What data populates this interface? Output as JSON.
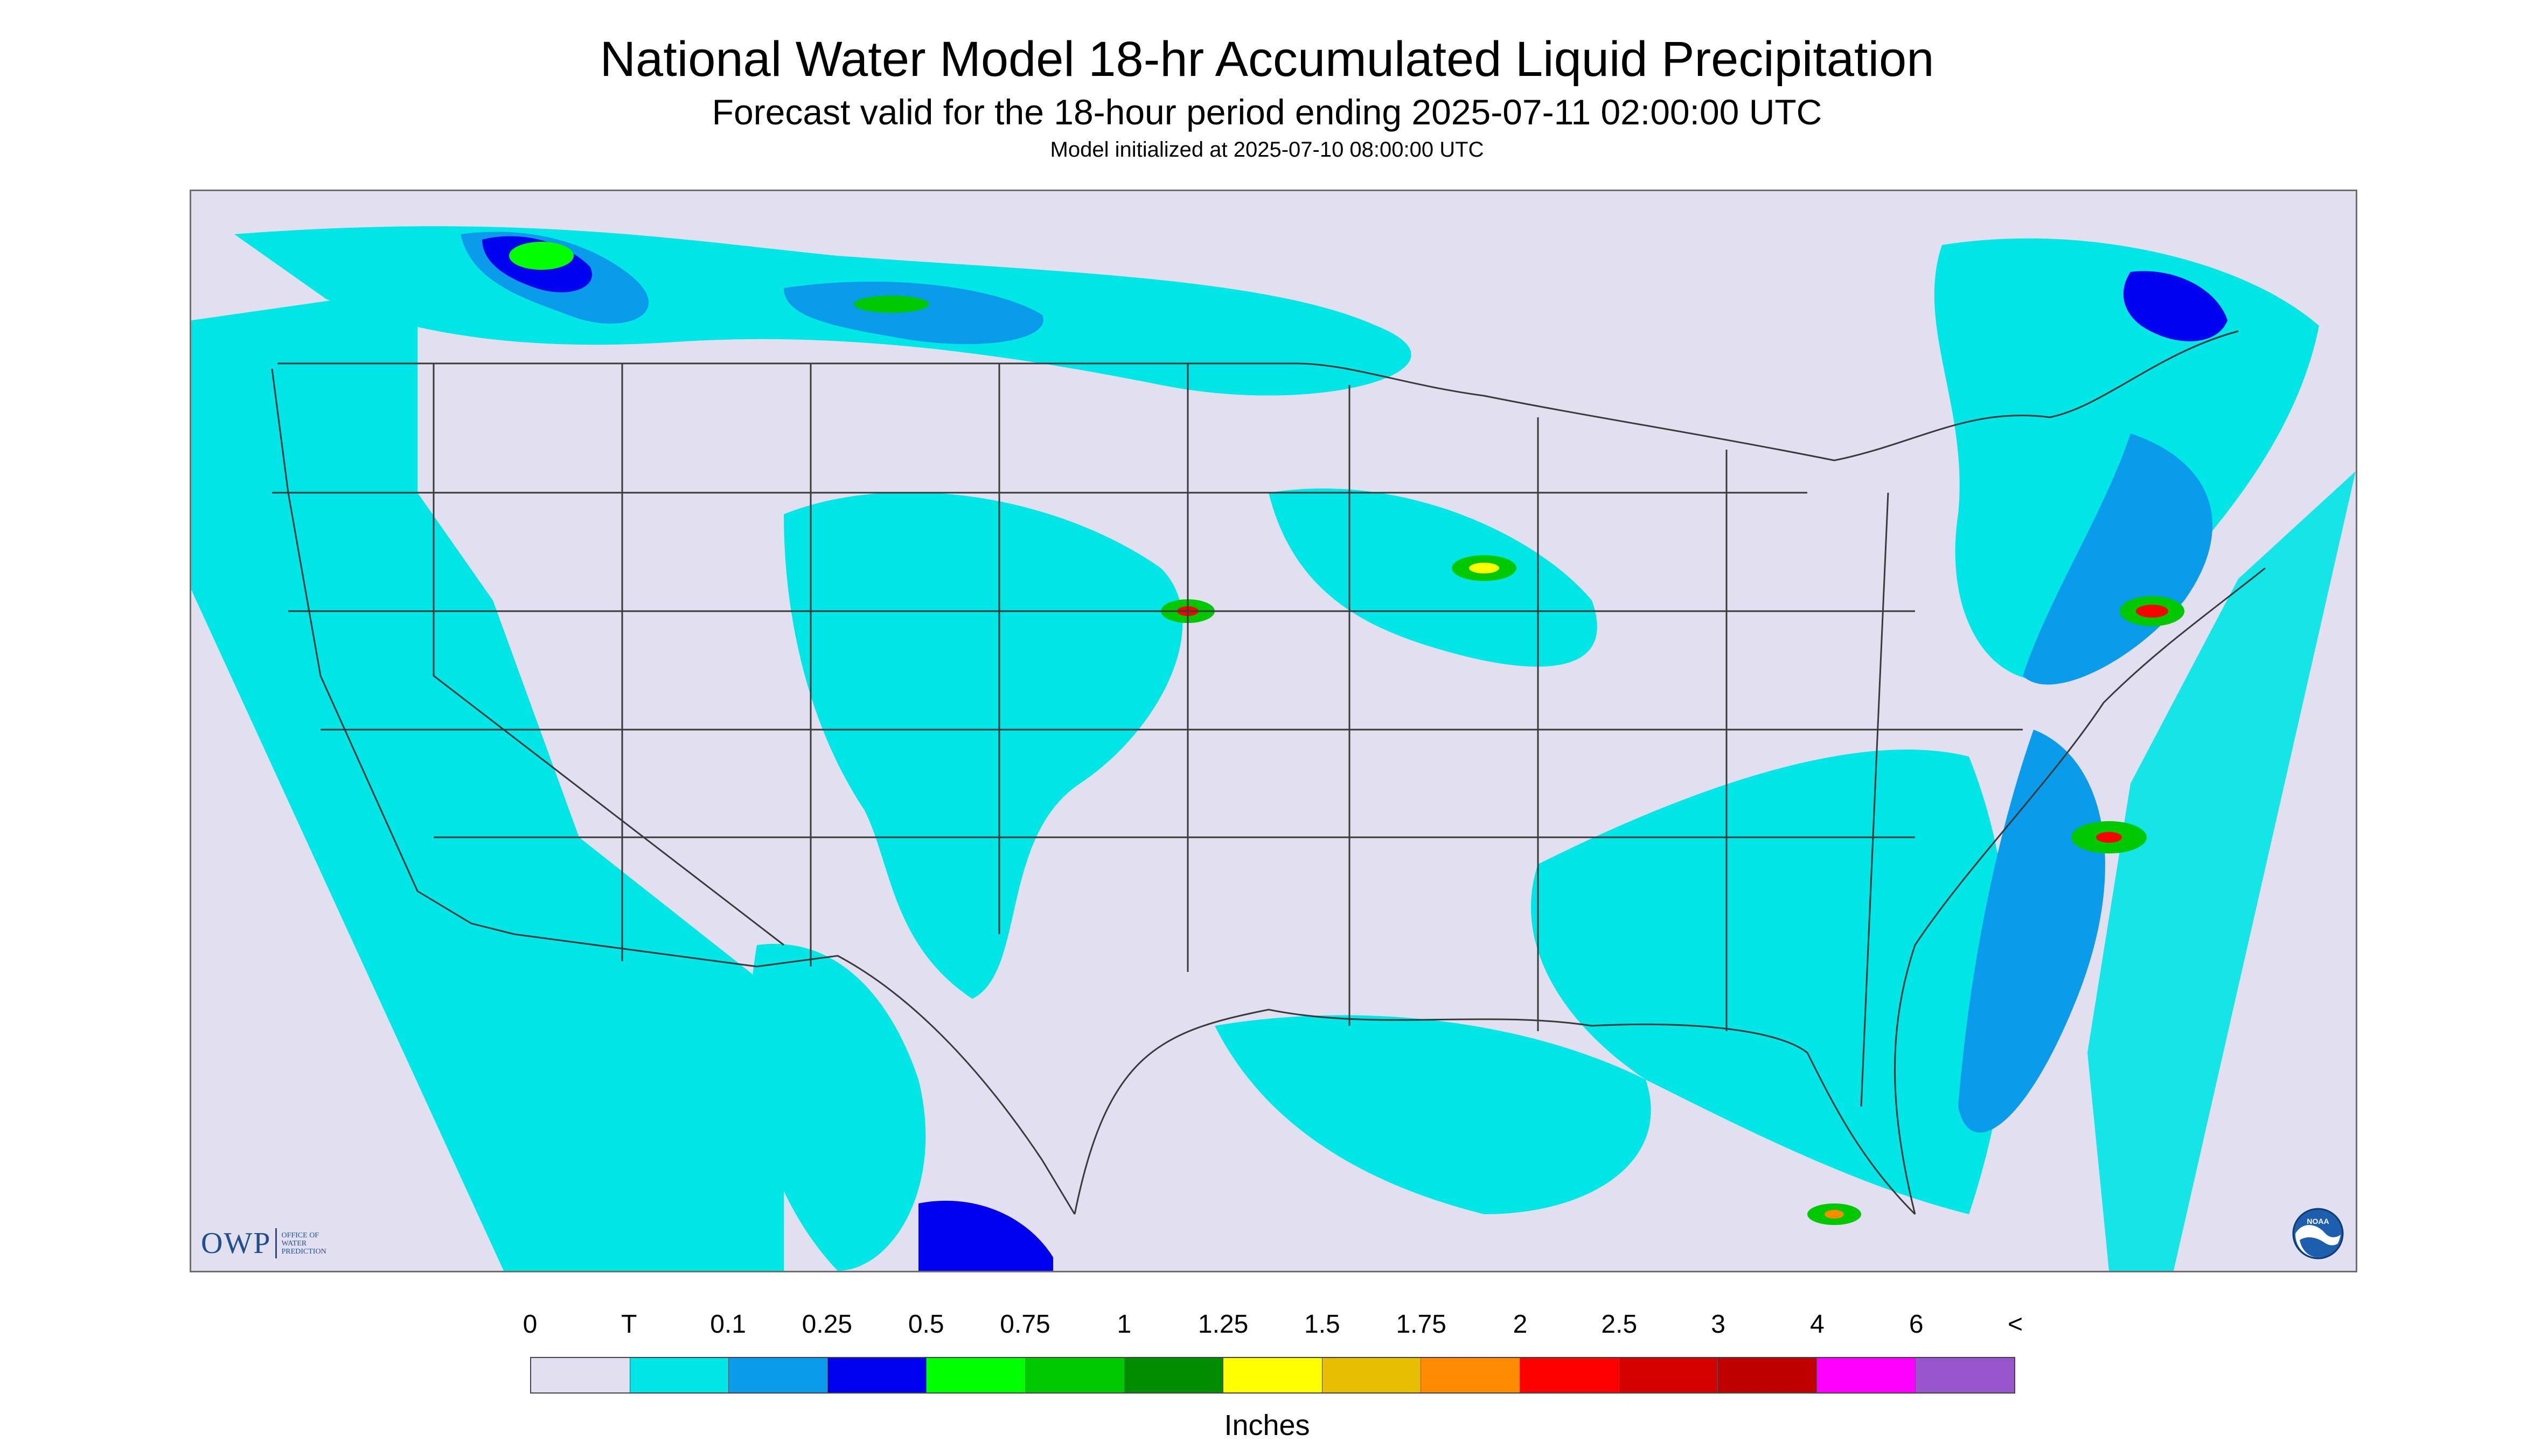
{
  "title": "National Water Model 18-hr Accumulated Liquid Precipitation",
  "subtitle": "Forecast valid for the 18-hour period ending 2025-07-11 02:00:00 UTC",
  "init_line": "Model initialized at 2025-07-10 08:00:00 UTC",
  "logos": {
    "owp_mark": "OWP",
    "owp_text": [
      "OFFICE OF",
      "WATER",
      "PREDICTION"
    ],
    "noaa_text": "NOAA"
  },
  "colors": {
    "no_data_bg": "#e2e0f0",
    "outline": "#3a3a3a"
  },
  "legend": {
    "labels": [
      "0",
      "T",
      "0.1",
      "0.25",
      "0.5",
      "0.75",
      "1",
      "1.25",
      "1.5",
      "1.75",
      "2",
      "2.5",
      "3",
      "4",
      "6",
      "<"
    ],
    "colors": [
      "#e2e0f0",
      "#00e6e6",
      "#0a9bea",
      "#0000f0",
      "#00ff00",
      "#00c800",
      "#008c00",
      "#ffff00",
      "#e6bd00",
      "#ff8c00",
      "#ff0000",
      "#d60000",
      "#c00000",
      "#ff00ff",
      "#9955cc"
    ],
    "units": "Inches"
  }
}
